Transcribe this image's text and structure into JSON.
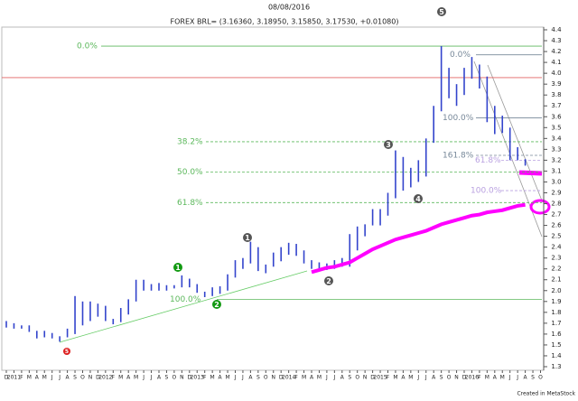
{
  "chart_data": {
    "type": "range",
    "title": "FOREX BRL= (3.16360, 3.18950, 3.15850, 3.17530, +0.01080)",
    "date": "08/08/2016",
    "footer": "Created in MetaStock",
    "categories": [
      "D",
      "2011",
      "F",
      "M",
      "A",
      "M",
      "J",
      "J",
      "A",
      "S",
      "O",
      "N",
      "D",
      "2012",
      "F",
      "M",
      "A",
      "M",
      "J",
      "J",
      "A",
      "S",
      "O",
      "N",
      "D",
      "2013",
      "F",
      "M",
      "A",
      "M",
      "J",
      "J",
      "A",
      "S",
      "O",
      "N",
      "D",
      "2014",
      "F",
      "M",
      "A",
      "M",
      "J",
      "J",
      "A",
      "S",
      "O",
      "N",
      "D",
      "2015",
      "F",
      "M",
      "A",
      "M",
      "J",
      "J",
      "A",
      "S",
      "O",
      "N",
      "D",
      "2016",
      "F",
      "M",
      "A",
      "M",
      "J",
      "J",
      "A",
      "S",
      "O"
    ],
    "low": [
      1.66,
      1.65,
      1.65,
      1.62,
      1.56,
      1.57,
      1.56,
      1.53,
      1.57,
      1.6,
      1.68,
      1.72,
      1.76,
      1.72,
      1.69,
      1.71,
      1.78,
      1.9,
      2.0,
      2.0,
      2.0,
      2.0,
      2.02,
      2.03,
      2.03,
      1.98,
      1.94,
      1.95,
      1.97,
      2.0,
      2.12,
      2.2,
      2.25,
      2.18,
      2.16,
      2.22,
      2.27,
      2.33,
      2.32,
      2.25,
      2.2,
      2.19,
      2.19,
      2.2,
      2.22,
      2.22,
      2.37,
      2.5,
      2.6,
      2.6,
      2.69,
      2.85,
      2.92,
      2.95,
      3.0,
      3.05,
      3.36,
      3.65,
      3.77,
      3.7,
      3.8,
      3.95,
      3.86,
      3.55,
      3.44,
      3.45,
      3.2,
      3.2,
      3.15,
      null,
      null
    ],
    "high": [
      1.72,
      1.7,
      1.68,
      1.68,
      1.63,
      1.63,
      1.61,
      1.58,
      1.65,
      1.95,
      1.9,
      1.9,
      1.88,
      1.86,
      1.74,
      1.84,
      1.92,
      2.1,
      2.1,
      2.06,
      2.07,
      2.05,
      2.05,
      2.14,
      2.11,
      2.06,
      1.99,
      2.03,
      2.04,
      2.15,
      2.28,
      2.3,
      2.45,
      2.4,
      2.24,
      2.35,
      2.4,
      2.44,
      2.43,
      2.37,
      2.28,
      2.26,
      2.25,
      2.28,
      2.3,
      2.52,
      2.59,
      2.61,
      2.75,
      2.75,
      2.9,
      3.29,
      3.23,
      3.13,
      3.2,
      3.4,
      3.7,
      4.25,
      4.05,
      3.9,
      4.05,
      4.15,
      4.08,
      3.97,
      3.7,
      3.61,
      3.5,
      3.32,
      3.21,
      null,
      null
    ],
    "color": "#3344cc",
    "ma": [
      null,
      null,
      null,
      null,
      null,
      null,
      null,
      null,
      null,
      null,
      null,
      null,
      null,
      null,
      null,
      null,
      null,
      null,
      null,
      null,
      null,
      null,
      null,
      null,
      null,
      null,
      null,
      null,
      null,
      null,
      null,
      null,
      null,
      null,
      null,
      null,
      null,
      null,
      null,
      null,
      2.17,
      2.19,
      2.21,
      2.22,
      2.24,
      2.26,
      2.3,
      2.34,
      2.38,
      2.41,
      2.44,
      2.47,
      2.49,
      2.51,
      2.53,
      2.55,
      2.58,
      2.61,
      2.63,
      2.65,
      2.67,
      2.69,
      2.7,
      2.72,
      2.73,
      2.74,
      2.76,
      2.78,
      2.79,
      null,
      null
    ],
    "ma_color": "#ff00ff",
    "reference_line": 3.96,
    "reference_color": "#e06060",
    "fib_levels": [
      {
        "label": "0.0%",
        "value": 4.25,
        "color": "#5cb85c"
      },
      {
        "label": "38.2%",
        "value": 3.37,
        "color": "#5cb85c"
      },
      {
        "label": "50.0%",
        "value": 3.09,
        "color": "#5cb85c"
      },
      {
        "label": "61.8%",
        "value": 2.81,
        "color": "#5cb85c"
      },
      {
        "label": "100.0%",
        "value": 1.92,
        "color": "#5cb85c"
      },
      {
        "label": "0.0%",
        "value": 4.17,
        "color": "#778899"
      },
      {
        "label": "100.0%",
        "value": 3.59,
        "color": "#778899"
      },
      {
        "label": "161.8%",
        "value": 3.245,
        "color": "#778899"
      },
      {
        "label": "61.8%",
        "value": 3.2,
        "color": "#b9a0e0"
      },
      {
        "label": "100.0%",
        "value": 2.92,
        "color": "#b9a0e0"
      }
    ],
    "wave_labels": [
      "5",
      "3",
      "4",
      "1",
      "2",
      "1",
      "2",
      "5"
    ],
    "ylim": [
      1.3,
      4.4
    ],
    "yticks": [
      1.3,
      1.4,
      1.5,
      1.6,
      1.7,
      1.8,
      1.9,
      {
        "value": 2,
        "label": "2.0"
      },
      2.1,
      2.2,
      2.3,
      2.4,
      2.5,
      2.6,
      2.7,
      2.8,
      2.9,
      {
        "value": 3,
        "label": "3.0"
      },
      3.1,
      3.2,
      3.3,
      3.4,
      3.5,
      3.6,
      3.7,
      3.8,
      3.9,
      {
        "value": 4,
        "label": "4.0"
      },
      4.1,
      4.2,
      4.3,
      4.4
    ]
  }
}
